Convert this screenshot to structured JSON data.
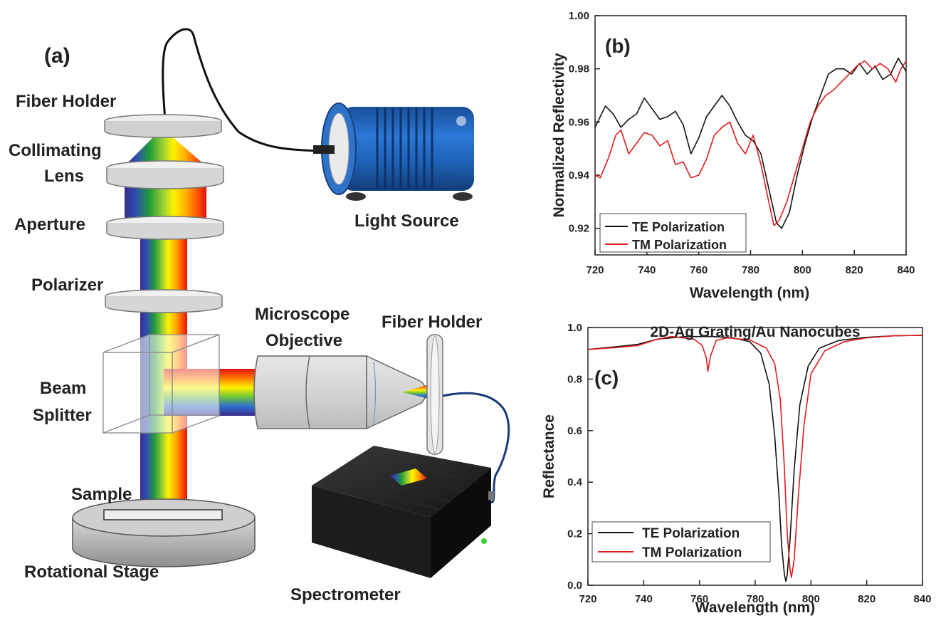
{
  "panel_a": {
    "panel_label": "(a)",
    "labels": {
      "fiber_holder_top": "Fiber Holder",
      "collimating": "Collimating",
      "lens": "Lens",
      "aperture": "Aperture",
      "polarizer": "Polarizer",
      "beam": "Beam",
      "splitter": "Splitter",
      "sample": "Sample",
      "rotational_stage": "Rotational Stage",
      "light_source": "Light Source",
      "microscope": "Microscope",
      "objective": "Objective",
      "fiber_holder_right": "Fiber Holder",
      "spectrometer": "Spectrometer"
    }
  },
  "chart_data": [
    {
      "type": "line",
      "panel_label": "(b)",
      "xlabel": "Wavelength (nm)",
      "ylabel": "Normalized Reflectivity",
      "xlim": [
        720,
        840
      ],
      "ylim": [
        0.91,
        1.0
      ],
      "xticks": [
        720,
        740,
        760,
        780,
        800,
        820,
        840
      ],
      "yticks": [
        0.92,
        0.94,
        0.96,
        0.98,
        1.0
      ],
      "ytick_labels": [
        "0.92",
        "0.94",
        "0.96",
        "0.98",
        "1.00"
      ],
      "legend_position": "bottom-left",
      "series": [
        {
          "name": "TE Polarization",
          "color": "#111111",
          "x": [
            720,
            722,
            724,
            727,
            730,
            733,
            736,
            739,
            742,
            745,
            748,
            751,
            754,
            757,
            760,
            763,
            766,
            769,
            772,
            775,
            778,
            781,
            784,
            787,
            790,
            792,
            795,
            798,
            801,
            804,
            807,
            810,
            813,
            816,
            819,
            822,
            825,
            828,
            831,
            834,
            837,
            840
          ],
          "y": [
            0.958,
            0.962,
            0.966,
            0.963,
            0.958,
            0.961,
            0.963,
            0.969,
            0.965,
            0.961,
            0.962,
            0.964,
            0.959,
            0.948,
            0.954,
            0.962,
            0.966,
            0.97,
            0.966,
            0.96,
            0.955,
            0.953,
            0.948,
            0.935,
            0.922,
            0.92,
            0.926,
            0.94,
            0.952,
            0.962,
            0.97,
            0.978,
            0.98,
            0.98,
            0.978,
            0.982,
            0.978,
            0.981,
            0.976,
            0.978,
            0.984,
            0.979
          ]
        },
        {
          "name": "TM Polarization",
          "color": "#e31a1c",
          "x": [
            720,
            722,
            725,
            728,
            730,
            733,
            736,
            739,
            742,
            745,
            748,
            751,
            754,
            757,
            760,
            763,
            766,
            769,
            772,
            775,
            778,
            781,
            784,
            787,
            789,
            791,
            794,
            797,
            800,
            803,
            806,
            809,
            812,
            815,
            818,
            821,
            824,
            827,
            830,
            833,
            836,
            838,
            840
          ],
          "y": [
            0.94,
            0.939,
            0.946,
            0.955,
            0.957,
            0.948,
            0.952,
            0.956,
            0.955,
            0.951,
            0.953,
            0.944,
            0.945,
            0.939,
            0.94,
            0.946,
            0.955,
            0.958,
            0.96,
            0.952,
            0.948,
            0.955,
            0.944,
            0.93,
            0.921,
            0.923,
            0.93,
            0.94,
            0.95,
            0.96,
            0.966,
            0.97,
            0.972,
            0.975,
            0.978,
            0.981,
            0.983,
            0.98,
            0.982,
            0.98,
            0.975,
            0.98,
            0.983
          ]
        }
      ]
    },
    {
      "type": "line",
      "panel_label": "(c)",
      "title": "2D-Ag Grating/Au Nanocubes",
      "xlabel": "Wavelength (nm)",
      "ylabel": "Reflectance",
      "xlim": [
        720,
        840
      ],
      "ylim": [
        0.0,
        1.0
      ],
      "xticks": [
        720,
        740,
        760,
        780,
        800,
        820,
        840
      ],
      "yticks": [
        0.0,
        0.2,
        0.4,
        0.6,
        0.8,
        1.0
      ],
      "ytick_labels": [
        "0.0",
        "0.2",
        "0.4",
        "0.6",
        "0.8",
        "1.0"
      ],
      "legend_position": "bottom-left",
      "series": [
        {
          "name": "TE Polarization",
          "color": "#111111",
          "x": [
            720,
            730,
            738,
            745,
            755,
            765,
            772,
            778,
            782,
            785,
            787,
            788.5,
            789.5,
            790.5,
            791,
            791.5,
            792.5,
            794,
            796,
            799,
            803,
            810,
            820,
            830,
            840
          ],
          "y": [
            0.915,
            0.925,
            0.935,
            0.955,
            0.965,
            0.965,
            0.96,
            0.945,
            0.9,
            0.78,
            0.58,
            0.35,
            0.15,
            0.04,
            0.015,
            0.04,
            0.18,
            0.45,
            0.7,
            0.85,
            0.92,
            0.95,
            0.962,
            0.968,
            0.97
          ]
        },
        {
          "name": "TM Polarization",
          "color": "#e31a1c",
          "x": [
            720,
            730,
            738,
            745,
            750,
            758,
            761,
            762.5,
            763,
            764,
            766,
            770,
            778,
            784,
            787,
            789,
            790.5,
            791.5,
            792.5,
            793,
            794,
            795.5,
            797.5,
            800,
            805,
            812,
            820,
            830,
            840
          ],
          "y": [
            0.915,
            0.922,
            0.93,
            0.955,
            0.965,
            0.955,
            0.93,
            0.88,
            0.83,
            0.89,
            0.95,
            0.96,
            0.952,
            0.92,
            0.86,
            0.72,
            0.45,
            0.2,
            0.06,
            0.03,
            0.1,
            0.35,
            0.62,
            0.82,
            0.91,
            0.945,
            0.96,
            0.968,
            0.97
          ]
        }
      ]
    }
  ]
}
